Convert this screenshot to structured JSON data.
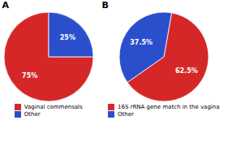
{
  "chart_data": [
    {
      "type": "pie",
      "title": "A",
      "categories": [
        "Vaginal commensals",
        "Other"
      ],
      "values": [
        75,
        25
      ],
      "value_labels": [
        "75%",
        "25%"
      ],
      "colors": [
        "#d62728",
        "#2b4fcc"
      ],
      "data_labels": true,
      "legend": "bottom"
    },
    {
      "type": "pie",
      "title": "B",
      "categories": [
        "16S rRNA gene match in the vagina",
        "Other"
      ],
      "values": [
        62.5,
        37.5
      ],
      "value_labels": [
        "62.5%",
        "37.5%"
      ],
      "colors": [
        "#d62728",
        "#2b4fcc"
      ],
      "data_labels": true,
      "legend": "bottom"
    }
  ]
}
